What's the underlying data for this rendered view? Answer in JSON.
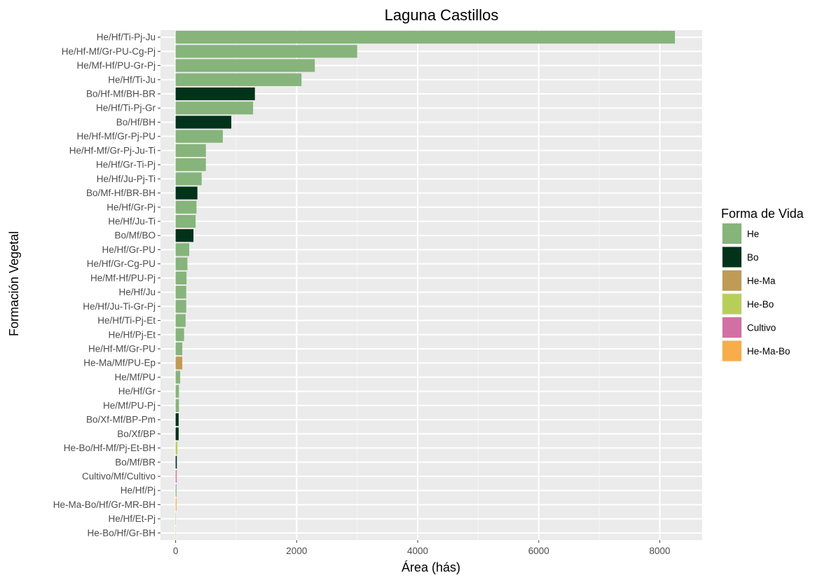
{
  "chart_data": {
    "type": "bar",
    "orientation": "horizontal",
    "title": "Laguna Castillos",
    "xlabel": "Área (hás)",
    "ylabel": "Formación Vegetal",
    "xlim": [
      -250,
      8700
    ],
    "xticks": [
      0,
      2000,
      4000,
      6000,
      8000
    ],
    "grid": true,
    "legend_position": "right",
    "legend_title": "Forma de Vida",
    "legend": [
      {
        "name": "He",
        "color": "#86b47b"
      },
      {
        "name": "Bo",
        "color": "#00331a"
      },
      {
        "name": "He-Ma",
        "color": "#bf9b55"
      },
      {
        "name": "He-Bo",
        "color": "#b7cf59"
      },
      {
        "name": "Cultivo",
        "color": "#d270a3"
      },
      {
        "name": "He-Ma-Bo",
        "color": "#f7ad4a"
      }
    ],
    "bars": [
      {
        "category": "He/Hf/Ti-Pj-Ju",
        "value": 8250,
        "group": "He"
      },
      {
        "category": "He/Hf-Mf/Gr-PU-Cg-Pj",
        "value": 3000,
        "group": "He"
      },
      {
        "category": "He/Mf-Hf/PU-Gr-Pj",
        "value": 2300,
        "group": "He"
      },
      {
        "category": "He/Hf/Ti-Ju",
        "value": 2080,
        "group": "He"
      },
      {
        "category": "Bo/Hf-Mf/BH-BR",
        "value": 1310,
        "group": "Bo"
      },
      {
        "category": "He/Hf/Ti-Pj-Gr",
        "value": 1280,
        "group": "He"
      },
      {
        "category": "Bo/Hf/BH",
        "value": 920,
        "group": "Bo"
      },
      {
        "category": "He/Hf-Mf/Gr-Pj-PU",
        "value": 780,
        "group": "He"
      },
      {
        "category": "He/Hf-Mf/Gr-Pj-Ju-Ti",
        "value": 500,
        "group": "He"
      },
      {
        "category": "He/Hf/Gr-Ti-Pj",
        "value": 500,
        "group": "He"
      },
      {
        "category": "He/Hf/Ju-Pj-Ti",
        "value": 430,
        "group": "He"
      },
      {
        "category": "Bo/Mf-Hf/BR-BH",
        "value": 360,
        "group": "Bo"
      },
      {
        "category": "He/Hf/Gr-Pj",
        "value": 345,
        "group": "He"
      },
      {
        "category": "He/Hf/Ju-Ti",
        "value": 330,
        "group": "He"
      },
      {
        "category": "Bo/Mf/BO",
        "value": 295,
        "group": "Bo"
      },
      {
        "category": "He/Hf/Gr-PU",
        "value": 225,
        "group": "He"
      },
      {
        "category": "He/Hf/Gr-Cg-PU",
        "value": 195,
        "group": "He"
      },
      {
        "category": "He/Mf-Hf/PU-Pj",
        "value": 180,
        "group": "He"
      },
      {
        "category": "He/Hf/Ju",
        "value": 175,
        "group": "He"
      },
      {
        "category": "He/Hf/Ju-Ti-Gr-Pj",
        "value": 175,
        "group": "He"
      },
      {
        "category": "He/Hf/Ti-Pj-Et",
        "value": 165,
        "group": "He"
      },
      {
        "category": "He/Hf/Pj-Et",
        "value": 140,
        "group": "He"
      },
      {
        "category": "He/Hf-Mf/Gr-PU",
        "value": 110,
        "group": "He"
      },
      {
        "category": "He-Ma/Mf/PU-Ep",
        "value": 110,
        "group": "He-Ma"
      },
      {
        "category": "He/Mf/PU",
        "value": 75,
        "group": "He"
      },
      {
        "category": "He/Hf/Gr",
        "value": 55,
        "group": "He"
      },
      {
        "category": "He/Mf/PU-Pj",
        "value": 55,
        "group": "He"
      },
      {
        "category": "Bo/Xf-Mf/BP-Pm",
        "value": 50,
        "group": "Bo"
      },
      {
        "category": "Bo/Xf/BP",
        "value": 50,
        "group": "Bo"
      },
      {
        "category": "He-Bo/Hf-Mf/Pj-Et-BH",
        "value": 30,
        "group": "He-Bo"
      },
      {
        "category": "Bo/Mf/BR",
        "value": 20,
        "group": "Bo"
      },
      {
        "category": "Cultivo/Mf/Cultivo",
        "value": 18,
        "group": "Cultivo"
      },
      {
        "category": "He/Hf/Pj",
        "value": 15,
        "group": "He"
      },
      {
        "category": "He-Ma-Bo/Hf/Gr-MR-BH",
        "value": 15,
        "group": "He-Ma-Bo"
      },
      {
        "category": "He/Hf/Et-Pj",
        "value": 4,
        "group": "He"
      },
      {
        "category": "He-Bo/Hf/Gr-BH",
        "value": 2,
        "group": "He-Bo"
      }
    ]
  }
}
